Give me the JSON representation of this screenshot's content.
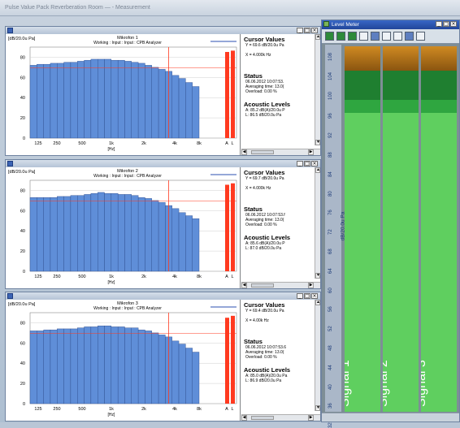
{
  "app": {
    "title": "Pulse Value Pack Reverberation Room — - Measurement"
  },
  "windows": [
    {
      "id": "mic1",
      "chart_title": "Mikrofon 1",
      "yunit": "[dB/20.0u Pa]",
      "legend": "Working : Input : Input : CPB Analyzer",
      "cursor_h": "Cursor Values",
      "cursor_y": "Y = 69.6 dB/20.0u Pa",
      "cursor_x": "X = 4.000k Hz",
      "status_h": "Status",
      "status_1": "06.06.2012 10:07:53.",
      "status_2": "Averaging time: 13.0(",
      "status_3": "Overload: 0.00 %",
      "ac_h": "Acoustic Levels",
      "ac_1": "A: 85.2 dB(A)/20.0u P",
      "ac_2": "L: 86.5 dB/20.0u Pa",
      "values": [
        72,
        73,
        73,
        74,
        74,
        75,
        75,
        76,
        77,
        78,
        78,
        78,
        77,
        77,
        76,
        75,
        74,
        72,
        70,
        68,
        66,
        62,
        59,
        55,
        51
      ]
    },
    {
      "id": "mic2",
      "chart_title": "Mikrofon 2",
      "yunit": "[dB/20.0u Pa]",
      "legend": "Working : Input : Input : CPB Analyzer",
      "cursor_h": "Cursor Values",
      "cursor_y": "Y = 69.7 dB/20.0u Pa",
      "cursor_x": "X = 4.000k Hz",
      "status_h": "Status",
      "status_1": "06.06.2012 10:07:53.f",
      "status_2": "Averaging time: 13.0(",
      "status_3": "Overload: 0.00 %",
      "ac_h": "Acoustic Levels",
      "ac_1": "A: 85.6 dB(A)/20.0u P",
      "ac_2": "L: 87.0 dB/20.0u Pa",
      "values": [
        73,
        73,
        73,
        73,
        74,
        74,
        75,
        75,
        76,
        77,
        78,
        77,
        77,
        76,
        76,
        75,
        73,
        72,
        70,
        68,
        65,
        62,
        58,
        55,
        52
      ]
    },
    {
      "id": "mic3",
      "chart_title": "Mikrofon 3",
      "yunit": "[dB/20.0u Pa]",
      "legend": "Working : Input : Input : CPB Analyzer",
      "cursor_h": "Cursor Values",
      "cursor_y": "Y = 69.4 dB/20.0u Pa",
      "cursor_x": "X = 4.00k Hz",
      "status_h": "Status",
      "status_1": "06.06.2012 10:07:53.6",
      "status_2": "Averaging time: 13.0(",
      "status_3": "Overload: 0.00 %",
      "ac_h": "Acoustic Levels",
      "ac_1": "A: 85.0 dB(A)/20.0u Pa",
      "ac_2": "L: 86.9 dB/20.0u Pa",
      "values": [
        72,
        72,
        73,
        73,
        74,
        74,
        74,
        75,
        76,
        76,
        77,
        77,
        76,
        76,
        75,
        75,
        73,
        72,
        70,
        68,
        66,
        62,
        59,
        55,
        51
      ]
    }
  ],
  "chart_common": {
    "yticks": [
      "0",
      "20",
      "40",
      "60",
      "80"
    ],
    "xticks": [
      "125",
      "250",
      "500",
      "1k",
      "2k",
      "4k",
      "8k",
      "A",
      "L"
    ],
    "xunit": "[Hz]"
  },
  "level_meter": {
    "title": "Level Meter",
    "axis_label": "dB/20.0u Pa",
    "scale": [
      "108",
      "104",
      "100",
      "96",
      "92",
      "88",
      "84",
      "80",
      "76",
      "72",
      "68",
      "64",
      "60",
      "56",
      "52",
      "48",
      "44",
      "40",
      "36",
      "32"
    ],
    "signals": [
      "Signal 1",
      "Signal 2",
      "Signal 3"
    ]
  },
  "colors": {
    "bar": "#5f8ed8",
    "cursor": "#ff3a20",
    "meter_green": "#5fcf5f"
  }
}
